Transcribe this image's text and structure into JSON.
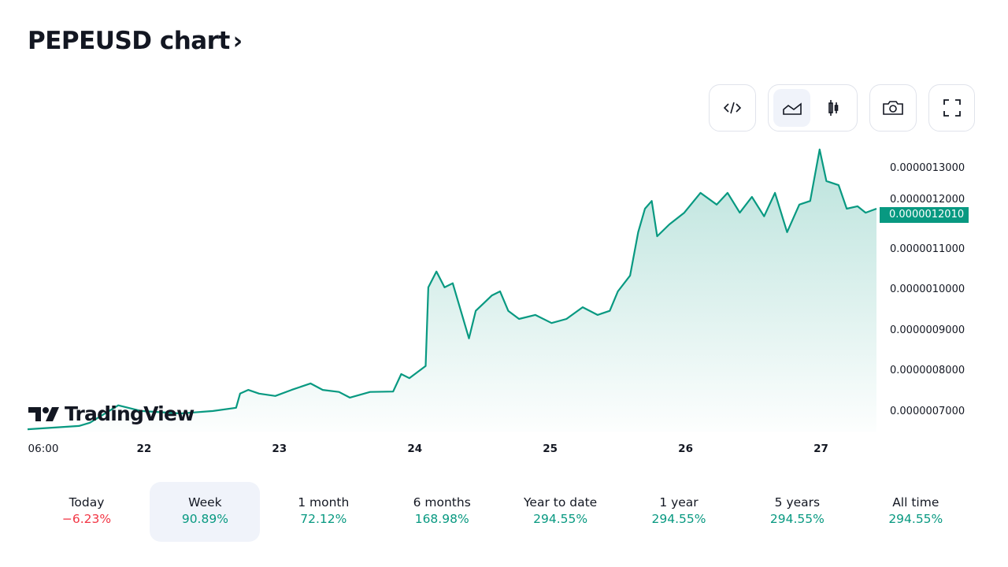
{
  "header": {
    "title": "PEPEUSD chart",
    "chevron": "›"
  },
  "toolbar": {
    "icons": [
      "embed-code-icon",
      "area-chart-icon",
      "candlestick-chart-icon",
      "camera-icon",
      "fullscreen-icon"
    ],
    "active": "area-chart-icon"
  },
  "logo_text": "TradingView",
  "colors": {
    "line": "#089981",
    "negative": "#f23645",
    "positive": "#089981",
    "active_bg": "#f0f3fa"
  },
  "chart_data": {
    "type": "area",
    "symbol": "PEPEUSD",
    "xlabel": "",
    "ylabel": "",
    "x_tick_labels": [
      {
        "x": 21.0,
        "label": "06:00"
      },
      {
        "x": 22,
        "label": "22"
      },
      {
        "x": 23,
        "label": "23"
      },
      {
        "x": 24,
        "label": "24"
      },
      {
        "x": 25,
        "label": "25"
      },
      {
        "x": 26,
        "label": "26"
      },
      {
        "x": 27,
        "label": "27"
      }
    ],
    "y_tick_labels": [
      "0.0000007000",
      "0.0000008000",
      "0.0000009000",
      "0.0000010000",
      "0.0000011000",
      "0.0000012000",
      "0.0000013000"
    ],
    "y_ticks": [
      7e-07,
      8e-07,
      9e-07,
      1e-06,
      1.1e-06,
      1.2e-06,
      1.3e-06
    ],
    "xlim": [
      21.14,
      27.41
    ],
    "ylim": [
      6.28e-07,
      1.366e-06
    ],
    "last_price_label": "0.0000012010",
    "last_price": 1.201e-06,
    "x": [
      21.14,
      21.52,
      21.6,
      21.81,
      21.98,
      22.27,
      22.51,
      22.68,
      22.71,
      22.77,
      22.85,
      22.97,
      23.09,
      23.23,
      23.32,
      23.44,
      23.52,
      23.67,
      23.84,
      23.9,
      23.96,
      24.08,
      24.1,
      24.16,
      24.22,
      24.28,
      24.34,
      24.4,
      24.45,
      24.51,
      24.57,
      24.63,
      24.69,
      24.77,
      24.89,
      25.01,
      25.12,
      25.24,
      25.35,
      25.44,
      25.5,
      25.59,
      25.65,
      25.7,
      25.75,
      25.79,
      25.88,
      25.99,
      26.11,
      26.23,
      26.31,
      26.4,
      26.49,
      26.58,
      26.66,
      26.75,
      26.84,
      26.92,
      26.99,
      27.04,
      27.13,
      27.19,
      27.27,
      27.33,
      27.41
    ],
    "y": [
      6.57e-07,
      6.65e-07,
      6.73e-07,
      7.16e-07,
      7.02e-07,
      6.96e-07,
      7.02e-07,
      7.1e-07,
      7.45e-07,
      7.54e-07,
      7.45e-07,
      7.39e-07,
      7.54e-07,
      7.7e-07,
      7.54e-07,
      7.49e-07,
      7.35e-07,
      7.49e-07,
      7.5e-07,
      7.93e-07,
      7.83e-07,
      8.13e-07,
      1.007e-06,
      1.046e-06,
      1.007e-06,
      1.017e-06,
      9.49e-07,
      8.81e-07,
      9.49e-07,
      9.68e-07,
      9.87e-07,
      9.97e-07,
      9.49e-07,
      9.29e-07,
      9.39e-07,
      9.19e-07,
      9.29e-07,
      9.58e-07,
      9.39e-07,
      9.49e-07,
      9.97e-07,
      1.036e-06,
      1.143e-06,
      1.201e-06,
      1.22e-06,
      1.133e-06,
      1.162e-06,
      1.191e-06,
      1.24e-06,
      1.211e-06,
      1.24e-06,
      1.191e-06,
      1.23e-06,
      1.182e-06,
      1.24e-06,
      1.143e-06,
      1.211e-06,
      1.22e-06,
      1.347e-06,
      1.269e-06,
      1.259e-06,
      1.201e-06,
      1.207e-06,
      1.191e-06,
      1.201e-06
    ]
  },
  "periods": [
    {
      "label": "Today",
      "value": "−6.23%",
      "sign": "negative"
    },
    {
      "label": "Week",
      "value": "90.89%",
      "sign": "positive",
      "active": true
    },
    {
      "label": "1 month",
      "value": "72.12%",
      "sign": "positive"
    },
    {
      "label": "6 months",
      "value": "168.98%",
      "sign": "positive"
    },
    {
      "label": "Year to date",
      "value": "294.55%",
      "sign": "positive"
    },
    {
      "label": "1 year",
      "value": "294.55%",
      "sign": "positive"
    },
    {
      "label": "5 years",
      "value": "294.55%",
      "sign": "positive"
    },
    {
      "label": "All time",
      "value": "294.55%",
      "sign": "positive"
    }
  ]
}
